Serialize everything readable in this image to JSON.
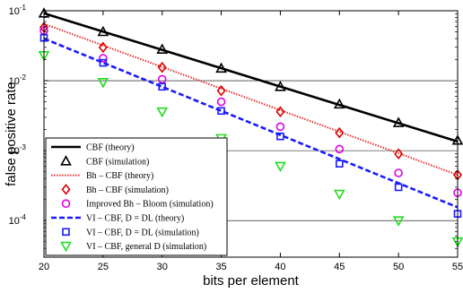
{
  "chart_data": {
    "type": "line",
    "xlabel": "bits per element",
    "ylabel": "false positive rate",
    "xlim": [
      20,
      55
    ],
    "ylim": [
      3e-05,
      0.1
    ],
    "y_scale": "log",
    "grid": "horizontal decade lines",
    "legend_position": "bottom-left",
    "x_ticks": [
      "20",
      "25",
      "30",
      "35",
      "40",
      "45",
      "50",
      "55"
    ],
    "y_ticks": [
      {
        "mantissa": "10",
        "exp": "-1",
        "value": 0.1
      },
      {
        "mantissa": "10",
        "exp": "-2",
        "value": 0.01
      },
      {
        "mantissa": "10",
        "exp": "-3",
        "value": 0.001
      },
      {
        "mantissa": "10",
        "exp": "-4",
        "value": 0.0001
      }
    ],
    "series": [
      {
        "name": "CBF (theory)",
        "kind": "line",
        "style": "solid",
        "color": "#000000",
        "x": [
          20,
          55
        ],
        "y": [
          0.092,
          0.00135
        ]
      },
      {
        "name": "CBF (simulation)",
        "kind": "marker",
        "marker": "triangle-up",
        "color": "#000000",
        "x": [
          20,
          25,
          30,
          35,
          40,
          45,
          50,
          55
        ],
        "y": [
          0.092,
          0.05,
          0.028,
          0.015,
          0.0082,
          0.0046,
          0.0025,
          0.0014
        ]
      },
      {
        "name": "Bh – CBF  (theory)",
        "kind": "line",
        "style": "dotted",
        "color": "#e83030",
        "x": [
          20,
          55
        ],
        "y": [
          0.065,
          0.00045
        ]
      },
      {
        "name": "Bh – CBF (simulation)",
        "kind": "marker",
        "marker": "diamond",
        "color": "#dd0000",
        "x": [
          20,
          25,
          30,
          35,
          40,
          45,
          50,
          55
        ],
        "y": [
          0.058,
          0.03,
          0.0155,
          0.0072,
          0.0036,
          0.0018,
          0.0009,
          0.00045
        ]
      },
      {
        "name": "Improved Bh – Bloom  (simulation)",
        "kind": "marker",
        "marker": "circle",
        "color": "#e000e0",
        "x": [
          20,
          25,
          30,
          35,
          40,
          45,
          50,
          55
        ],
        "y": [
          0.052,
          0.021,
          0.0105,
          0.005,
          0.0022,
          0.00105,
          0.00048,
          0.00025
        ]
      },
      {
        "name": "VI – CBF, D = DL (theory)",
        "kind": "line",
        "style": "dashed",
        "color": "#1a1aff",
        "x": [
          20,
          55
        ],
        "y": [
          0.04,
          0.000155
        ]
      },
      {
        "name": "VI – CBF, D = DL (simulation)",
        "kind": "marker",
        "marker": "square",
        "color": "#1a1aff",
        "x": [
          20,
          25,
          30,
          35,
          40,
          45,
          50,
          55
        ],
        "y": [
          0.041,
          0.018,
          0.0082,
          0.0037,
          0.0016,
          0.00065,
          0.0003,
          0.000125
        ]
      },
      {
        "name": "VI – CBF, general D (simulation)",
        "kind": "marker",
        "marker": "triangle-down",
        "color": "#22dd22",
        "x": [
          20,
          25,
          30,
          35,
          40,
          45,
          50,
          55
        ],
        "y": [
          0.023,
          0.0095,
          0.0036,
          0.0015,
          0.0006,
          0.00024,
          0.0001,
          5e-05
        ]
      }
    ]
  }
}
